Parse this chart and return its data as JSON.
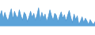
{
  "values": [
    55,
    70,
    45,
    65,
    50,
    40,
    60,
    75,
    45,
    68,
    55,
    48,
    72,
    55,
    42,
    65,
    58,
    38,
    52,
    68,
    50,
    62,
    42,
    58,
    78,
    42,
    65,
    48,
    60,
    38,
    52,
    72,
    55,
    42,
    62,
    56,
    38,
    54,
    66,
    48,
    58,
    40,
    56,
    70,
    50,
    35,
    60,
    44,
    55,
    30,
    40,
    52,
    35,
    48,
    40,
    30,
    44,
    36,
    30,
    38
  ],
  "line_color": "#4e96d1",
  "fill_color": "#5ba3d9",
  "background_color": "#ffffff",
  "ylim_min": 0,
  "ylim_max": 100,
  "alpha": 1.0
}
